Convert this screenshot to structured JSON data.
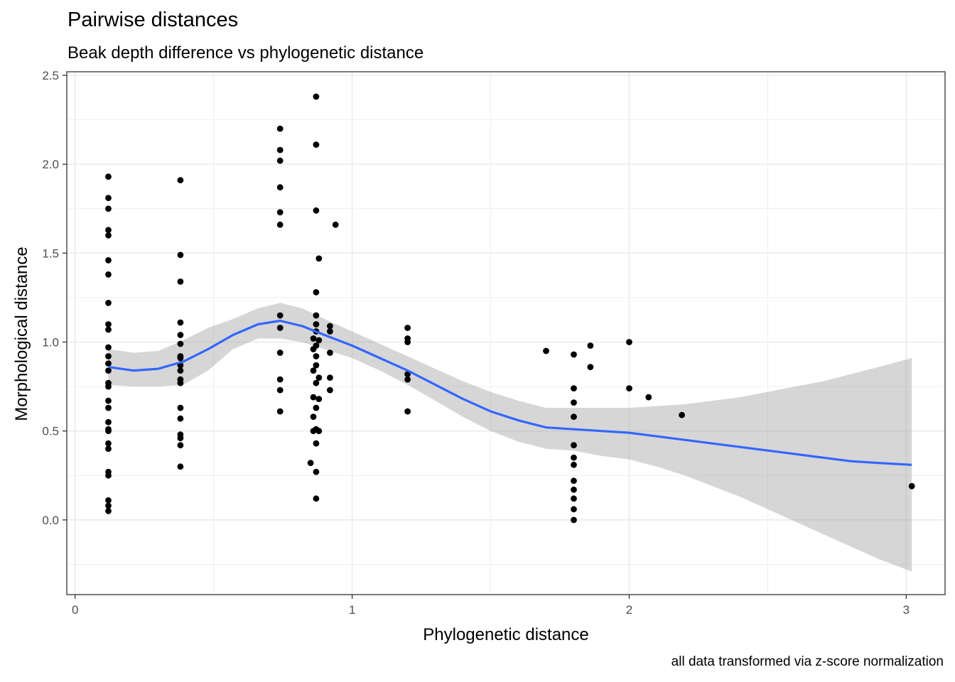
{
  "chart_data": {
    "type": "scatter",
    "title": "Pairwise distances",
    "subtitle": "Beak depth difference vs phylogenetic distance",
    "xlabel": "Phylogenetic distance",
    "ylabel": "Morphological distance",
    "caption": "all data transformed via z-score normalization",
    "xlim": [
      -0.03,
      3.14
    ],
    "ylim": [
      -0.42,
      2.52
    ],
    "x_ticks": [
      0,
      1,
      2,
      3
    ],
    "x_tick_labels": [
      "0",
      "1",
      "2",
      "3"
    ],
    "y_ticks": [
      0.0,
      0.5,
      1.0,
      1.5,
      2.0,
      2.5
    ],
    "y_tick_labels": [
      "0.0",
      "0.5",
      "1.0",
      "1.5",
      "2.0",
      "2.5"
    ],
    "grid": true,
    "colors": {
      "points": "#000000",
      "smooth_line": "#3366FF",
      "confidence_band": "#999999",
      "panel_border": "#333333",
      "grid": "#EBEBEB"
    },
    "points": [
      {
        "x": 0.12,
        "y": 1.93
      },
      {
        "x": 0.12,
        "y": 1.81
      },
      {
        "x": 0.12,
        "y": 1.75
      },
      {
        "x": 0.12,
        "y": 1.63
      },
      {
        "x": 0.12,
        "y": 1.6
      },
      {
        "x": 0.12,
        "y": 1.46
      },
      {
        "x": 0.12,
        "y": 1.38
      },
      {
        "x": 0.12,
        "y": 1.22
      },
      {
        "x": 0.12,
        "y": 1.1
      },
      {
        "x": 0.12,
        "y": 1.07
      },
      {
        "x": 0.12,
        "y": 0.97
      },
      {
        "x": 0.12,
        "y": 0.92
      },
      {
        "x": 0.12,
        "y": 0.88
      },
      {
        "x": 0.12,
        "y": 0.84
      },
      {
        "x": 0.12,
        "y": 0.77
      },
      {
        "x": 0.12,
        "y": 0.75
      },
      {
        "x": 0.12,
        "y": 0.67
      },
      {
        "x": 0.12,
        "y": 0.63
      },
      {
        "x": 0.12,
        "y": 0.55
      },
      {
        "x": 0.12,
        "y": 0.51
      },
      {
        "x": 0.12,
        "y": 0.5
      },
      {
        "x": 0.12,
        "y": 0.43
      },
      {
        "x": 0.12,
        "y": 0.4
      },
      {
        "x": 0.12,
        "y": 0.27
      },
      {
        "x": 0.12,
        "y": 0.25
      },
      {
        "x": 0.12,
        "y": 0.11
      },
      {
        "x": 0.12,
        "y": 0.08
      },
      {
        "x": 0.12,
        "y": 0.05
      },
      {
        "x": 0.38,
        "y": 1.91
      },
      {
        "x": 0.38,
        "y": 1.49
      },
      {
        "x": 0.38,
        "y": 1.34
      },
      {
        "x": 0.38,
        "y": 1.11
      },
      {
        "x": 0.38,
        "y": 1.04
      },
      {
        "x": 0.38,
        "y": 0.99
      },
      {
        "x": 0.38,
        "y": 0.92
      },
      {
        "x": 0.38,
        "y": 0.91
      },
      {
        "x": 0.38,
        "y": 0.87
      },
      {
        "x": 0.38,
        "y": 0.84
      },
      {
        "x": 0.38,
        "y": 0.79
      },
      {
        "x": 0.38,
        "y": 0.77
      },
      {
        "x": 0.38,
        "y": 0.63
      },
      {
        "x": 0.38,
        "y": 0.57
      },
      {
        "x": 0.38,
        "y": 0.48
      },
      {
        "x": 0.38,
        "y": 0.46
      },
      {
        "x": 0.38,
        "y": 0.42
      },
      {
        "x": 0.38,
        "y": 0.3
      },
      {
        "x": 0.74,
        "y": 2.2
      },
      {
        "x": 0.74,
        "y": 2.08
      },
      {
        "x": 0.74,
        "y": 2.02
      },
      {
        "x": 0.74,
        "y": 1.87
      },
      {
        "x": 0.74,
        "y": 1.73
      },
      {
        "x": 0.74,
        "y": 1.66
      },
      {
        "x": 0.74,
        "y": 1.15
      },
      {
        "x": 0.74,
        "y": 1.08
      },
      {
        "x": 0.74,
        "y": 0.94
      },
      {
        "x": 0.74,
        "y": 0.79
      },
      {
        "x": 0.74,
        "y": 0.73
      },
      {
        "x": 0.74,
        "y": 0.61
      },
      {
        "x": 0.87,
        "y": 2.38
      },
      {
        "x": 0.87,
        "y": 2.11
      },
      {
        "x": 0.87,
        "y": 1.74
      },
      {
        "x": 0.88,
        "y": 1.47
      },
      {
        "x": 0.87,
        "y": 1.28
      },
      {
        "x": 0.87,
        "y": 1.15
      },
      {
        "x": 0.87,
        "y": 1.1
      },
      {
        "x": 0.87,
        "y": 1.06
      },
      {
        "x": 0.86,
        "y": 1.02
      },
      {
        "x": 0.88,
        "y": 1.01
      },
      {
        "x": 0.87,
        "y": 0.98
      },
      {
        "x": 0.86,
        "y": 0.96
      },
      {
        "x": 0.87,
        "y": 0.92
      },
      {
        "x": 0.87,
        "y": 0.87
      },
      {
        "x": 0.86,
        "y": 0.84
      },
      {
        "x": 0.88,
        "y": 0.8
      },
      {
        "x": 0.87,
        "y": 0.77
      },
      {
        "x": 0.86,
        "y": 0.69
      },
      {
        "x": 0.88,
        "y": 0.68
      },
      {
        "x": 0.87,
        "y": 0.63
      },
      {
        "x": 0.86,
        "y": 0.58
      },
      {
        "x": 0.87,
        "y": 0.51
      },
      {
        "x": 0.86,
        "y": 0.5
      },
      {
        "x": 0.88,
        "y": 0.5
      },
      {
        "x": 0.87,
        "y": 0.43
      },
      {
        "x": 0.85,
        "y": 0.32
      },
      {
        "x": 0.87,
        "y": 0.27
      },
      {
        "x": 0.87,
        "y": 0.12
      },
      {
        "x": 0.92,
        "y": 1.09
      },
      {
        "x": 0.92,
        "y": 1.06
      },
      {
        "x": 0.92,
        "y": 0.94
      },
      {
        "x": 0.92,
        "y": 0.8
      },
      {
        "x": 0.92,
        "y": 0.73
      },
      {
        "x": 0.94,
        "y": 1.66
      },
      {
        "x": 1.2,
        "y": 1.08
      },
      {
        "x": 1.2,
        "y": 1.02
      },
      {
        "x": 1.2,
        "y": 1.0
      },
      {
        "x": 1.2,
        "y": 0.82
      },
      {
        "x": 1.2,
        "y": 0.79
      },
      {
        "x": 1.2,
        "y": 0.61
      },
      {
        "x": 1.7,
        "y": 0.95
      },
      {
        "x": 1.8,
        "y": 0.93
      },
      {
        "x": 1.8,
        "y": 0.74
      },
      {
        "x": 1.8,
        "y": 0.66
      },
      {
        "x": 1.8,
        "y": 0.58
      },
      {
        "x": 1.8,
        "y": 0.42
      },
      {
        "x": 1.8,
        "y": 0.35
      },
      {
        "x": 1.8,
        "y": 0.31
      },
      {
        "x": 1.8,
        "y": 0.22
      },
      {
        "x": 1.8,
        "y": 0.17
      },
      {
        "x": 1.8,
        "y": 0.12
      },
      {
        "x": 1.8,
        "y": 0.06
      },
      {
        "x": 1.8,
        "y": 0.0
      },
      {
        "x": 1.86,
        "y": 0.98
      },
      {
        "x": 1.86,
        "y": 0.86
      },
      {
        "x": 2.0,
        "y": 1.0
      },
      {
        "x": 2.0,
        "y": 0.74
      },
      {
        "x": 2.07,
        "y": 0.69
      },
      {
        "x": 2.19,
        "y": 0.59
      },
      {
        "x": 3.02,
        "y": 0.19
      }
    ],
    "smooth": {
      "x": [
        0.12,
        0.21,
        0.3,
        0.39,
        0.48,
        0.57,
        0.66,
        0.74,
        0.82,
        0.9,
        1.0,
        1.1,
        1.2,
        1.3,
        1.4,
        1.5,
        1.6,
        1.7,
        1.8,
        1.9,
        2.0,
        2.1,
        2.2,
        2.3,
        2.4,
        2.5,
        2.6,
        2.7,
        2.8,
        2.9,
        3.02
      ],
      "y": [
        0.86,
        0.84,
        0.85,
        0.89,
        0.96,
        1.04,
        1.1,
        1.12,
        1.09,
        1.04,
        0.98,
        0.91,
        0.84,
        0.76,
        0.68,
        0.61,
        0.56,
        0.52,
        0.51,
        0.5,
        0.49,
        0.47,
        0.45,
        0.43,
        0.41,
        0.39,
        0.37,
        0.35,
        0.33,
        0.32,
        0.31
      ],
      "lower": [
        0.76,
        0.75,
        0.75,
        0.76,
        0.84,
        0.96,
        1.02,
        1.02,
        1.0,
        0.96,
        0.91,
        0.84,
        0.76,
        0.67,
        0.58,
        0.5,
        0.44,
        0.4,
        0.39,
        0.36,
        0.34,
        0.3,
        0.25,
        0.19,
        0.13,
        0.06,
        -0.01,
        -0.08,
        -0.15,
        -0.22,
        -0.29
      ],
      "upper": [
        0.96,
        0.94,
        0.95,
        1.01,
        1.08,
        1.13,
        1.19,
        1.22,
        1.19,
        1.13,
        1.06,
        0.99,
        0.92,
        0.85,
        0.78,
        0.72,
        0.67,
        0.63,
        0.63,
        0.63,
        0.63,
        0.64,
        0.65,
        0.67,
        0.69,
        0.72,
        0.75,
        0.78,
        0.82,
        0.86,
        0.91
      ]
    }
  }
}
